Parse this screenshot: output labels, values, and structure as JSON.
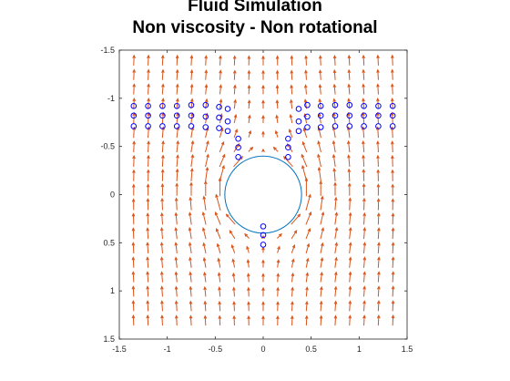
{
  "chart_data": {
    "type": "quiver",
    "title": [
      "Fluid Simulation",
      "Non viscosity - Non rotational"
    ],
    "xlabel": "",
    "ylabel": "",
    "xlim": [
      -1.5,
      1.5
    ],
    "ylim": [
      -1.5,
      1.5
    ],
    "y_axis_reversed": true,
    "xticks": [
      "-1.5",
      "-1",
      "-0.5",
      "0",
      "0.5",
      "1",
      "1.5"
    ],
    "yticks": [
      "-1.5",
      "-1",
      "-0.5",
      "0",
      "0.5",
      "1",
      "1.5"
    ],
    "grid": false,
    "field": {
      "description_free": true,
      "grid_start": -1.35,
      "grid_step": 0.15,
      "grid_count": 19,
      "cylinder_radius": 0.4,
      "free_stream": [
        0,
        -1
      ],
      "color": "#d95319"
    },
    "cylinder": {
      "center": [
        0,
        0
      ],
      "radius": 0.4,
      "color": "#0072bd"
    },
    "particles": {
      "color": "#0000ff",
      "points": [
        [
          -1.35,
          -0.92
        ],
        [
          -1.35,
          -0.82
        ],
        [
          -1.35,
          -0.71
        ],
        [
          -1.2,
          -0.92
        ],
        [
          -1.2,
          -0.82
        ],
        [
          -1.2,
          -0.71
        ],
        [
          -1.05,
          -0.92
        ],
        [
          -1.05,
          -0.82
        ],
        [
          -1.05,
          -0.71
        ],
        [
          -0.9,
          -0.92
        ],
        [
          -0.9,
          -0.82
        ],
        [
          -0.9,
          -0.71
        ],
        [
          -0.75,
          -0.93
        ],
        [
          -0.75,
          -0.82
        ],
        [
          -0.75,
          -0.71
        ],
        [
          -0.6,
          -0.93
        ],
        [
          -0.6,
          -0.81
        ],
        [
          -0.6,
          -0.7
        ],
        [
          -0.46,
          -0.91
        ],
        [
          -0.46,
          -0.8
        ],
        [
          -0.46,
          -0.69
        ],
        [
          -0.37,
          -0.89
        ],
        [
          -0.37,
          -0.76
        ],
        [
          -0.37,
          -0.66
        ],
        [
          -0.26,
          -0.58
        ],
        [
          -0.26,
          -0.49
        ],
        [
          -0.26,
          -0.39
        ],
        [
          0.26,
          -0.58
        ],
        [
          0.26,
          -0.49
        ],
        [
          0.26,
          -0.39
        ],
        [
          0.37,
          -0.89
        ],
        [
          0.37,
          -0.76
        ],
        [
          0.37,
          -0.66
        ],
        [
          0.46,
          -0.93
        ],
        [
          0.46,
          -0.81
        ],
        [
          0.46,
          -0.7
        ],
        [
          0.6,
          -0.92
        ],
        [
          0.6,
          -0.82
        ],
        [
          0.6,
          -0.7
        ],
        [
          0.75,
          -0.93
        ],
        [
          0.75,
          -0.82
        ],
        [
          0.75,
          -0.71
        ],
        [
          0.9,
          -0.93
        ],
        [
          0.9,
          -0.82
        ],
        [
          0.9,
          -0.71
        ],
        [
          1.05,
          -0.92
        ],
        [
          1.05,
          -0.82
        ],
        [
          1.05,
          -0.71
        ],
        [
          1.2,
          -0.92
        ],
        [
          1.2,
          -0.82
        ],
        [
          1.2,
          -0.71
        ],
        [
          1.35,
          -0.92
        ],
        [
          1.35,
          -0.82
        ],
        [
          1.35,
          -0.71
        ],
        [
          0,
          0.33
        ],
        [
          0,
          0.42
        ],
        [
          0,
          0.52
        ]
      ]
    }
  }
}
